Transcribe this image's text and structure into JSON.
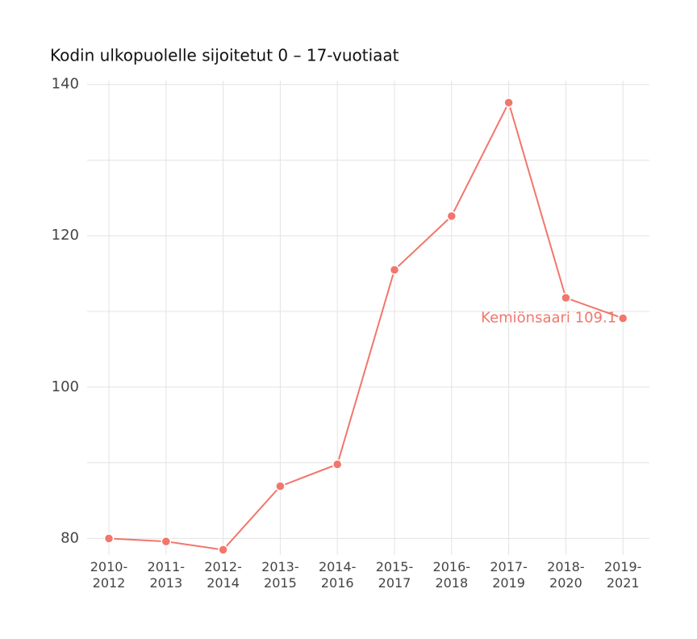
{
  "chart_data": {
    "type": "line",
    "title": "Kodin ulkopuolelle sijoitetut 0 – 17-vuotiaat",
    "categories": [
      "2010-2012",
      "2011-2013",
      "2012-2014",
      "2013-2015",
      "2014-2016",
      "2015-2017",
      "2016-2018",
      "2017-2019",
      "2018-2020",
      "2019-2021"
    ],
    "series": [
      {
        "name": "Kemiönsaari",
        "color": "#f2766b",
        "values": [
          80.0,
          79.6,
          78.5,
          86.9,
          89.8,
          115.5,
          122.6,
          137.6,
          111.8,
          109.1
        ]
      }
    ],
    "annotation": "Kemiönsaari 109.1",
    "ylim": [
      77.8,
      140.5
    ],
    "yticks": [
      80,
      100,
      120,
      140
    ],
    "minor_yticks": [
      90,
      110,
      130
    ],
    "grid": true
  }
}
